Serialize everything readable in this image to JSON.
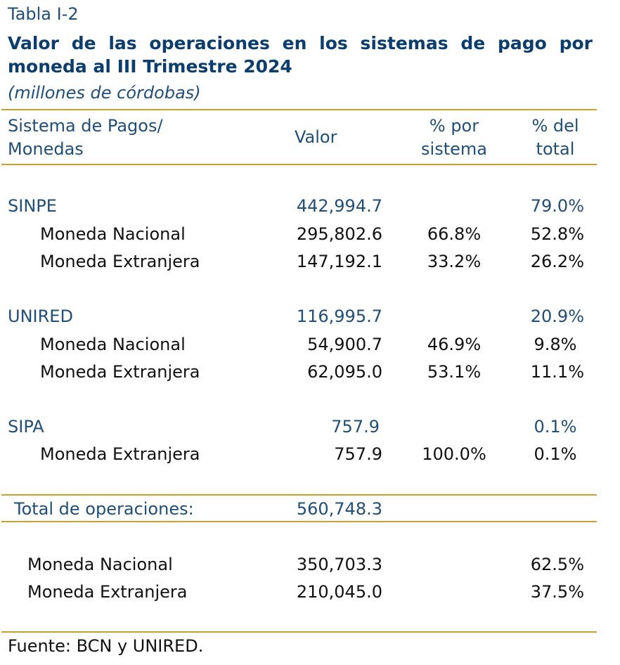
{
  "table_label": "Tabla I-2",
  "title": "Valor de las operaciones en los sistemas de pago por moneda al III Trimestre 2024",
  "subtitle": "(millones de córdobas)",
  "headers": {
    "sistema": "Sistema de Pagos/",
    "sistema2": "Monedas",
    "valor": "Valor",
    "pct_sistema1": "% por",
    "pct_sistema2": "sistema",
    "pct_total1": "% del",
    "pct_total2": "total"
  },
  "sinpe": {
    "name": "SINPE",
    "valor": "442,994.7",
    "pct_total": "79.0%",
    "nacional": {
      "label": "Moneda Nacional",
      "valor": "295,802.6",
      "pct_sistema": "66.8%",
      "pct_total": "52.8%"
    },
    "extranjera": {
      "label": "Moneda Extranjera",
      "valor": "147,192.1",
      "pct_sistema": "33.2%",
      "pct_total": "26.2%"
    }
  },
  "unired": {
    "name": "UNIRED",
    "valor": "116,995.7",
    "pct_total": "20.9%",
    "nacional": {
      "label": "Moneda Nacional",
      "valor": "54,900.7",
      "pct_sistema": "46.9%",
      "pct_total": "9.8%"
    },
    "extranjera": {
      "label": "Moneda Extranjera",
      "valor": "62,095.0",
      "pct_sistema": "53.1%",
      "pct_total": "11.1%"
    }
  },
  "sipa": {
    "name": "SIPA",
    "valor": "757.9",
    "pct_total": "0.1%",
    "extranjera": {
      "label": "Moneda Extranjera",
      "valor": "757.9",
      "pct_sistema": "100.0%",
      "pct_total": "0.1%"
    }
  },
  "total": {
    "label": "Total de operaciones:",
    "valor": "560,748.3"
  },
  "summary": {
    "nacional": {
      "label": "Moneda Nacional",
      "valor": "350,703.3",
      "pct_total": "62.5%"
    },
    "extranjera": {
      "label": "Moneda Extranjera",
      "valor": "210,045.0",
      "pct_total": "37.5%"
    }
  },
  "footer": "Fuente: BCN y UNIRED.",
  "colors": {
    "title": "#0b3d6e",
    "system_rows": "#1f4e79",
    "rules": "#c9a227"
  }
}
